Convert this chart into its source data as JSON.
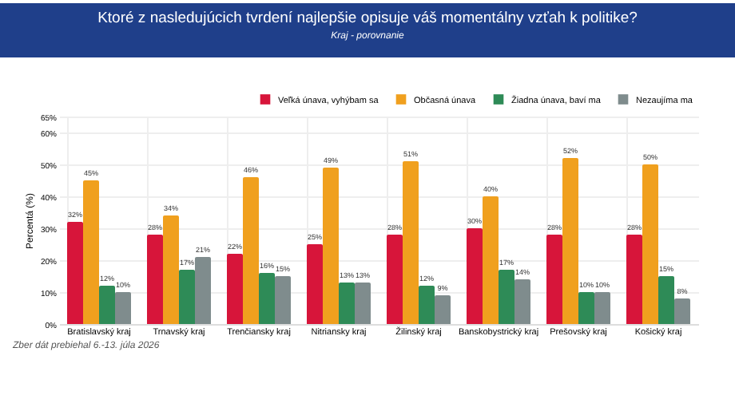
{
  "chart_data": {
    "type": "bar",
    "title": "Ktoré z nasledujúcich tvrdení najlepšie opisuje váš momentálny vzťah k politike?",
    "subtitle": "Kraj - porovnanie",
    "ylabel": "Percentá (%)",
    "categories": [
      "Bratislavský kraj",
      "Trnavský kraj",
      "Trenčiansky kraj",
      "Nitriansky kraj",
      "Žilinský kraj",
      "Banskobystrický kraj",
      "Prešovský kraj",
      "Košický kraj"
    ],
    "series": [
      {
        "name": "Veľká únava, vyhýbam sa",
        "color": "#d7153a",
        "values": [
          32,
          28,
          22,
          25,
          28,
          30,
          28,
          28
        ],
        "value_labels": [
          "32%",
          "28%",
          "22%",
          "25%",
          "28%",
          "30%",
          "28%",
          "28%"
        ]
      },
      {
        "name": "Občasná únava",
        "color": "#f0a01e",
        "values": [
          45,
          34,
          46,
          49,
          51,
          40,
          52,
          50
        ],
        "value_labels": [
          "45%",
          "34%",
          "46%",
          "49%",
          "51%",
          "40%",
          "52%",
          "50%"
        ]
      },
      {
        "name": "Žiadna únava, baví ma",
        "color": "#2e8b57",
        "values": [
          12,
          17,
          16,
          13,
          12,
          17,
          10,
          15
        ],
        "value_labels": [
          "12%",
          "17%",
          "16%",
          "13%",
          "12%",
          "17%",
          "10%",
          "15%"
        ]
      },
      {
        "name": "Nezaujíma ma",
        "color": "#7f8c8d",
        "values": [
          10,
          21,
          15,
          13,
          9,
          14,
          10,
          8
        ],
        "value_labels": [
          "10%",
          "21%",
          "15%",
          "13%",
          "9%",
          "14%",
          "10%",
          "8%"
        ]
      }
    ],
    "ylim": [
      0,
      65
    ],
    "yticks": [
      {
        "value": 0,
        "label": "0%"
      },
      {
        "value": 10,
        "label": "10%"
      },
      {
        "value": 20,
        "label": "20%"
      },
      {
        "value": 30,
        "label": "30%"
      },
      {
        "value": 40,
        "label": "40%"
      },
      {
        "value": 50,
        "label": "50%"
      },
      {
        "value": 60,
        "label": "60%"
      },
      {
        "value": 65,
        "label": "65%"
      }
    ],
    "grid": true,
    "legend": "top right",
    "annotations": [
      "Zber dát prebiehal 6.-13. júla 2026"
    ]
  }
}
